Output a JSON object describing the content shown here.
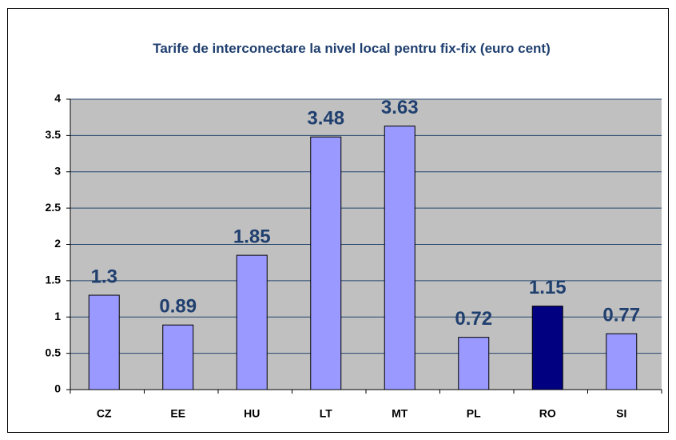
{
  "chart_data": {
    "type": "bar",
    "title": "Tarife de interconectare la nivel local pentru fix-fix (euro cent)",
    "categories": [
      "CZ",
      "EE",
      "HU",
      "LT",
      "MT",
      "PL",
      "RO",
      "SI"
    ],
    "values": [
      1.3,
      0.89,
      1.85,
      3.48,
      3.63,
      0.72,
      1.15,
      0.77
    ],
    "colors": [
      "#9999ff",
      "#9999ff",
      "#9999ff",
      "#9999ff",
      "#9999ff",
      "#9999ff",
      "#000080",
      "#9999ff"
    ],
    "ylim": [
      0,
      4
    ],
    "yticks": [
      0,
      0.5,
      1,
      1.5,
      2,
      2.5,
      3,
      3.5,
      4
    ],
    "grid": true
  }
}
